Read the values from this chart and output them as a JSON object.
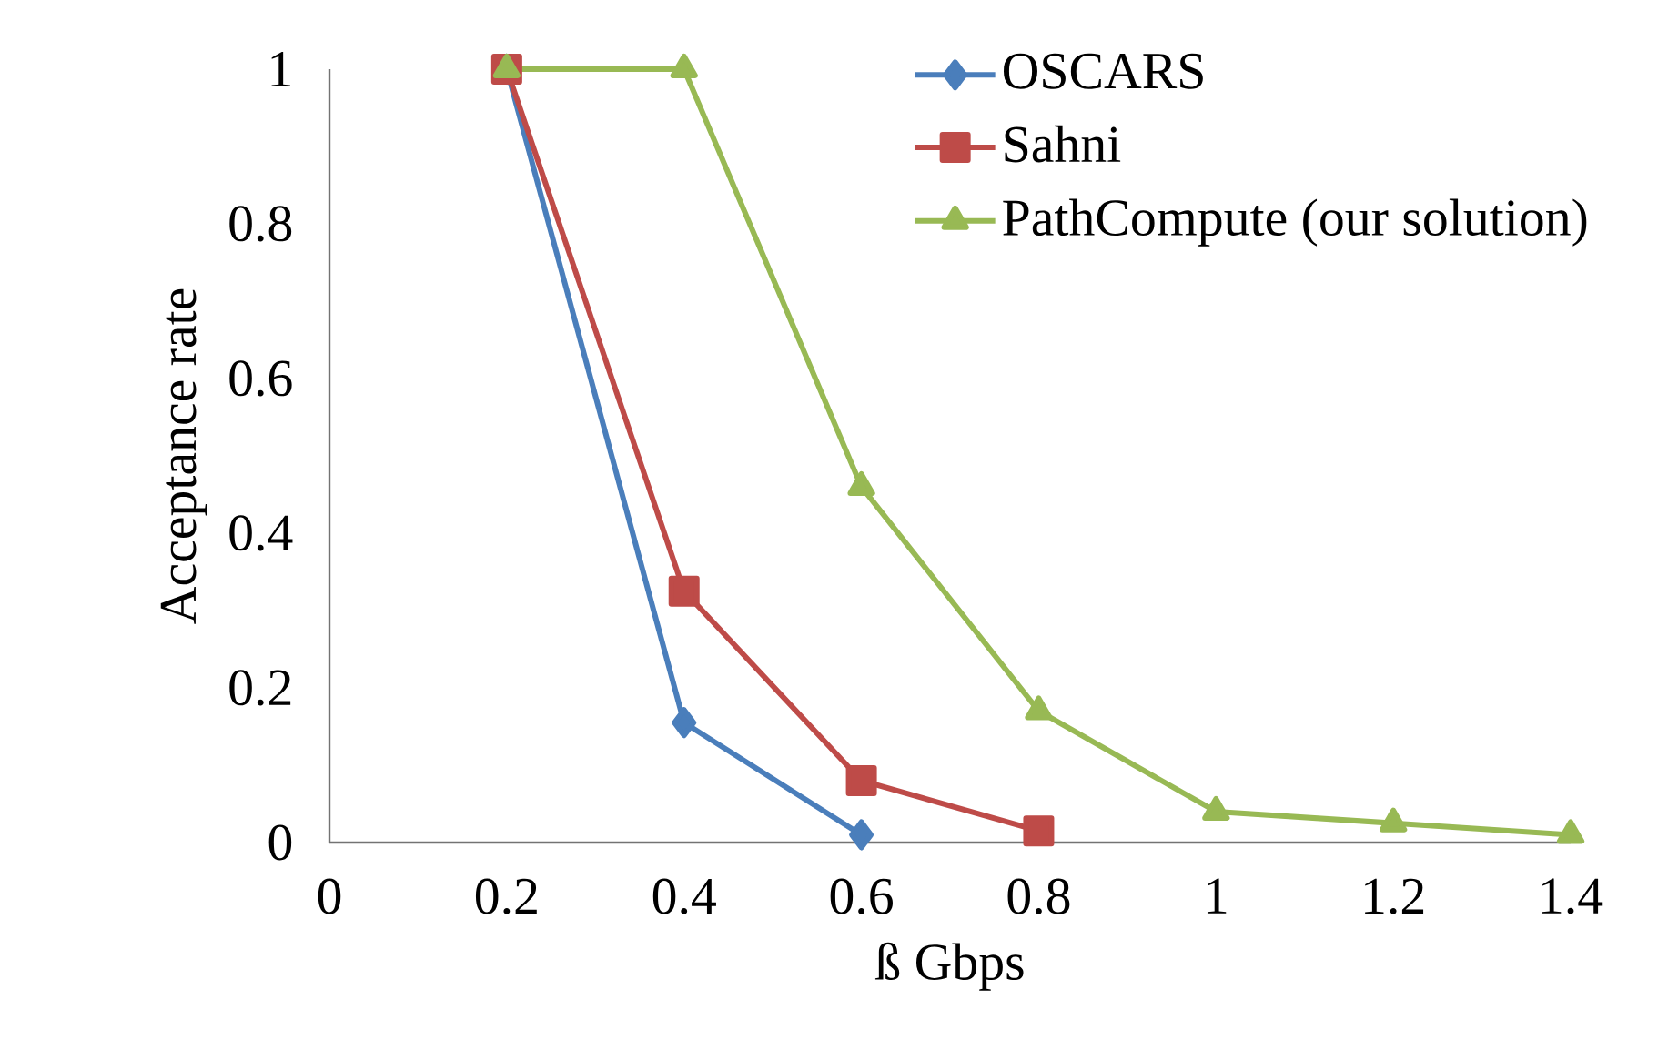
{
  "chart_data": {
    "type": "line",
    "xlabel": "ß Gbps",
    "ylabel": "Acceptance  rate",
    "xlim": [
      0,
      1.4
    ],
    "xticks": [
      0,
      0.2,
      0.4,
      0.6,
      0.8,
      1,
      1.2,
      1.4
    ],
    "ylim": [
      0,
      1
    ],
    "yticks": [
      0,
      0.2,
      0.4,
      0.6,
      0.8,
      1
    ],
    "grid": false,
    "legend": "top right",
    "series": [
      {
        "name": "OSCARS",
        "color": "#4a7ebb",
        "marker": "diamond",
        "x": [
          0.2,
          0.4,
          0.6
        ],
        "values": [
          1,
          0.155,
          0.01
        ]
      },
      {
        "name": "Sahni",
        "color": "#be4b48",
        "marker": "square",
        "x": [
          0.2,
          0.4,
          0.6,
          0.8
        ],
        "values": [
          1,
          0.325,
          0.08,
          0.015
        ]
      },
      {
        "name": "PathCompute (our solution)",
        "color": "#98b954",
        "marker": "triangle",
        "x": [
          0.2,
          0.4,
          0.6,
          0.8,
          1,
          1.2,
          1.4
        ],
        "values": [
          1,
          1,
          0.46,
          0.17,
          0.04,
          0.025,
          0.01
        ]
      }
    ]
  }
}
